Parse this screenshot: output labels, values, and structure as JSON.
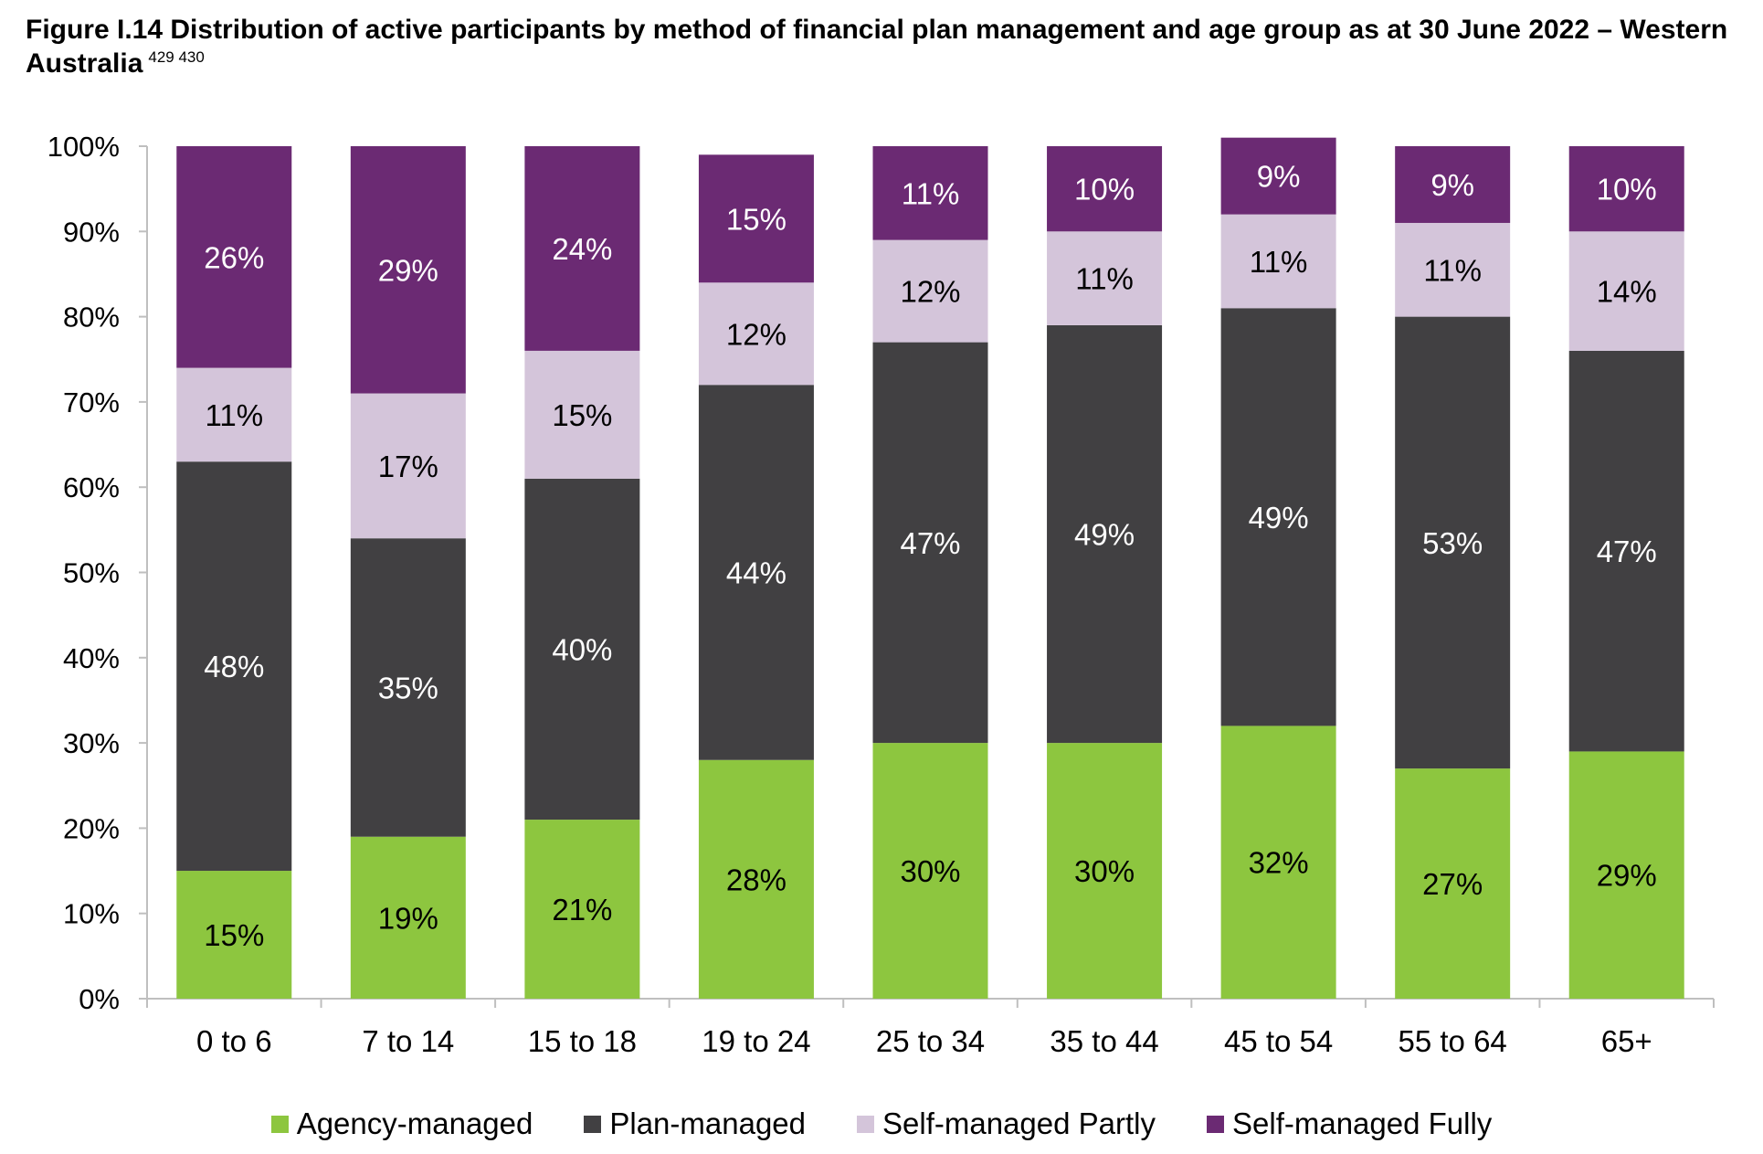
{
  "title": "Figure I.14 Distribution of active participants by method of financial plan management and age group as at 30 June 2022 – Western Australia",
  "title_notes": "429 430",
  "chart_data": {
    "type": "bar",
    "stacked": true,
    "categories": [
      "0 to 6",
      "7 to 14",
      "15 to 18",
      "19 to 24",
      "25 to 34",
      "35 to 44",
      "45 to 54",
      "55 to 64",
      "65+"
    ],
    "ylim": [
      0,
      100
    ],
    "yticks": [
      "0%",
      "10%",
      "20%",
      "30%",
      "40%",
      "50%",
      "60%",
      "70%",
      "80%",
      "90%",
      "100%"
    ],
    "legend_position": "bottom",
    "grid": false,
    "series": [
      {
        "name": "Agency-managed",
        "color": "#8dc63f",
        "label_color": "#000000",
        "values": [
          15,
          19,
          21,
          28,
          30,
          30,
          32,
          27,
          29
        ],
        "labels": [
          "15%",
          "19%",
          "21%",
          "28%",
          "30%",
          "30%",
          "32%",
          "27%",
          "29%"
        ]
      },
      {
        "name": "Plan-managed",
        "color": "#414042",
        "label_color": "#ffffff",
        "values": [
          48,
          35,
          40,
          44,
          47,
          49,
          49,
          53,
          47
        ],
        "labels": [
          "48%",
          "35%",
          "40%",
          "44%",
          "47%",
          "49%",
          "49%",
          "53%",
          "47%"
        ]
      },
      {
        "name": "Self-managed Partly",
        "color": "#d4c5da",
        "label_color": "#000000",
        "values": [
          11,
          17,
          15,
          12,
          12,
          11,
          11,
          11,
          14
        ],
        "labels": [
          "11%",
          "17%",
          "15%",
          "12%",
          "12%",
          "11%",
          "11%",
          "11%",
          "14%"
        ]
      },
      {
        "name": "Self-managed Fully",
        "color": "#6b2a73",
        "label_color": "#ffffff",
        "values": [
          26,
          29,
          24,
          15,
          11,
          10,
          9,
          9,
          10
        ],
        "labels": [
          "26%",
          "29%",
          "24%",
          "15%",
          "11%",
          "10%",
          "9%",
          "9%",
          "10%"
        ]
      }
    ]
  }
}
